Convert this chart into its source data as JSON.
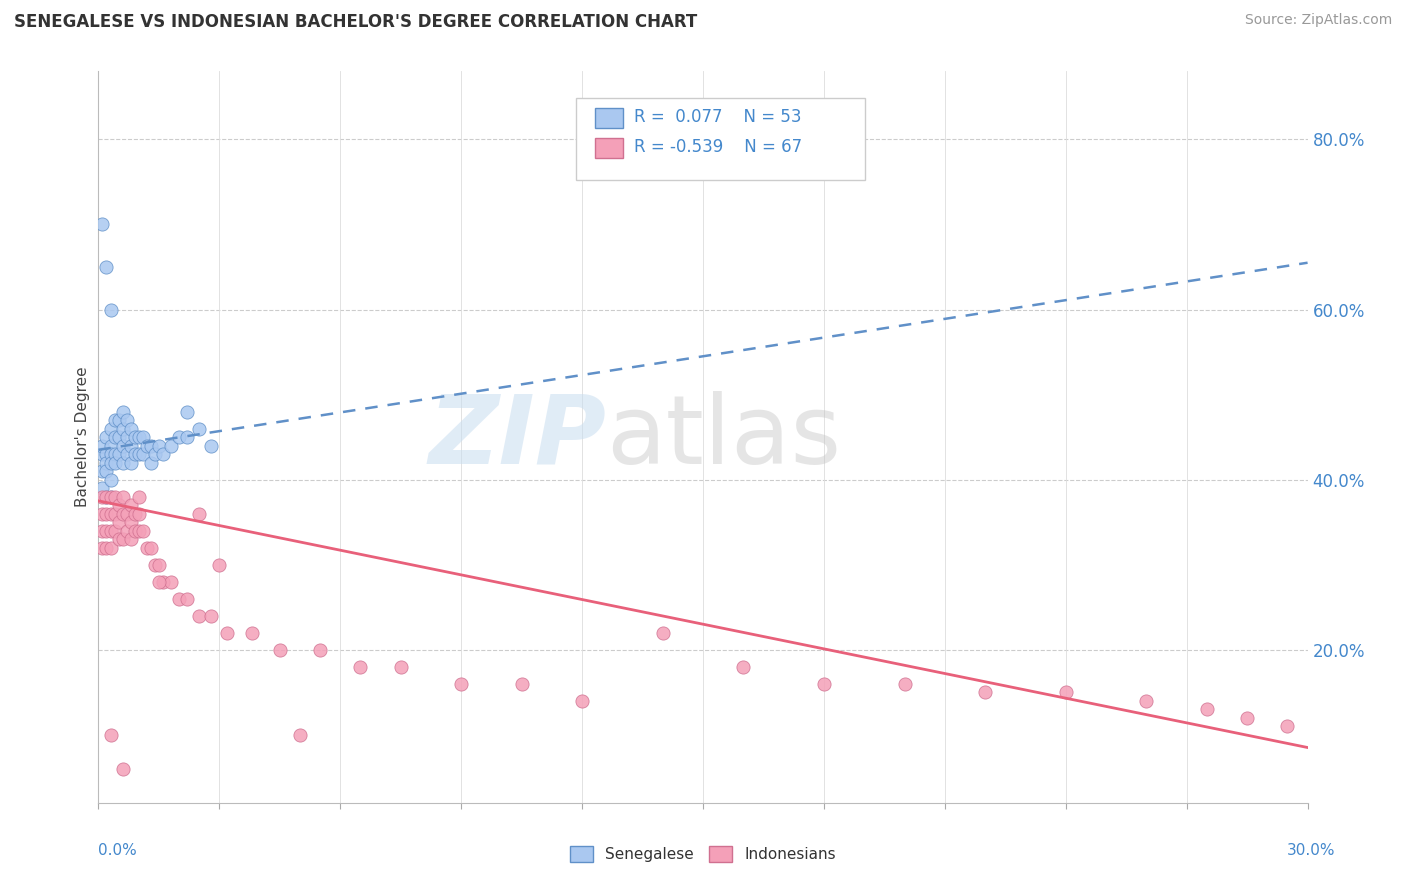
{
  "title": "SENEGALESE VS INDONESIAN BACHELOR'S DEGREE CORRELATION CHART",
  "source": "Source: ZipAtlas.com",
  "ylabel": "Bachelor's Degree",
  "ylabel_right_ticks": [
    "20.0%",
    "40.0%",
    "60.0%",
    "80.0%"
  ],
  "ylabel_right_values": [
    0.2,
    0.4,
    0.6,
    0.8
  ],
  "xmin": 0.0,
  "xmax": 0.3,
  "ymin": 0.02,
  "ymax": 0.88,
  "legend_r1": "R =  0.077",
  "legend_n1": "N = 53",
  "legend_r2": "R = -0.539",
  "legend_n2": "N = 67",
  "color_senegalese": "#aac8f0",
  "color_indonesian": "#f4a0b8",
  "color_line_senegalese": "#6090c8",
  "color_line_indonesian": "#e8607a",
  "color_text_blue": "#4488cc",
  "senegalese_x": [
    0.001,
    0.001,
    0.001,
    0.001,
    0.002,
    0.002,
    0.002,
    0.002,
    0.002,
    0.003,
    0.003,
    0.003,
    0.003,
    0.003,
    0.003,
    0.004,
    0.004,
    0.004,
    0.004,
    0.005,
    0.005,
    0.005,
    0.006,
    0.006,
    0.006,
    0.006,
    0.007,
    0.007,
    0.007,
    0.008,
    0.008,
    0.008,
    0.009,
    0.009,
    0.01,
    0.01,
    0.011,
    0.011,
    0.012,
    0.013,
    0.013,
    0.014,
    0.015,
    0.016,
    0.018,
    0.02,
    0.022,
    0.025,
    0.028,
    0.001,
    0.002,
    0.003,
    0.022
  ],
  "senegalese_y": [
    0.43,
    0.44,
    0.41,
    0.39,
    0.43,
    0.45,
    0.42,
    0.41,
    0.38,
    0.46,
    0.44,
    0.43,
    0.42,
    0.4,
    0.38,
    0.47,
    0.45,
    0.43,
    0.42,
    0.47,
    0.45,
    0.43,
    0.48,
    0.46,
    0.44,
    0.42,
    0.47,
    0.45,
    0.43,
    0.46,
    0.44,
    0.42,
    0.45,
    0.43,
    0.45,
    0.43,
    0.45,
    0.43,
    0.44,
    0.44,
    0.42,
    0.43,
    0.44,
    0.43,
    0.44,
    0.45,
    0.45,
    0.46,
    0.44,
    0.7,
    0.65,
    0.6,
    0.48
  ],
  "indonesian_x": [
    0.001,
    0.001,
    0.001,
    0.001,
    0.002,
    0.002,
    0.002,
    0.002,
    0.003,
    0.003,
    0.003,
    0.003,
    0.004,
    0.004,
    0.004,
    0.005,
    0.005,
    0.005,
    0.006,
    0.006,
    0.006,
    0.007,
    0.007,
    0.008,
    0.008,
    0.008,
    0.009,
    0.009,
    0.01,
    0.01,
    0.011,
    0.012,
    0.013,
    0.014,
    0.015,
    0.016,
    0.018,
    0.02,
    0.022,
    0.025,
    0.028,
    0.032,
    0.038,
    0.045,
    0.055,
    0.065,
    0.075,
    0.09,
    0.105,
    0.12,
    0.14,
    0.16,
    0.18,
    0.2,
    0.22,
    0.24,
    0.26,
    0.275,
    0.285,
    0.295,
    0.003,
    0.006,
    0.01,
    0.015,
    0.025,
    0.03,
    0.05
  ],
  "indonesian_y": [
    0.38,
    0.36,
    0.34,
    0.32,
    0.38,
    0.36,
    0.34,
    0.32,
    0.38,
    0.36,
    0.34,
    0.32,
    0.38,
    0.36,
    0.34,
    0.37,
    0.35,
    0.33,
    0.38,
    0.36,
    0.33,
    0.36,
    0.34,
    0.37,
    0.35,
    0.33,
    0.36,
    0.34,
    0.36,
    0.34,
    0.34,
    0.32,
    0.32,
    0.3,
    0.3,
    0.28,
    0.28,
    0.26,
    0.26,
    0.24,
    0.24,
    0.22,
    0.22,
    0.2,
    0.2,
    0.18,
    0.18,
    0.16,
    0.16,
    0.14,
    0.22,
    0.18,
    0.16,
    0.16,
    0.15,
    0.15,
    0.14,
    0.13,
    0.12,
    0.11,
    0.1,
    0.06,
    0.38,
    0.28,
    0.36,
    0.3,
    0.1
  ],
  "trend_sen_x0": 0.0,
  "trend_sen_x1": 0.3,
  "trend_sen_y0": 0.435,
  "trend_sen_y1": 0.655,
  "trend_indo_x0": 0.0,
  "trend_indo_x1": 0.3,
  "trend_indo_y0": 0.375,
  "trend_indo_y1": 0.085
}
